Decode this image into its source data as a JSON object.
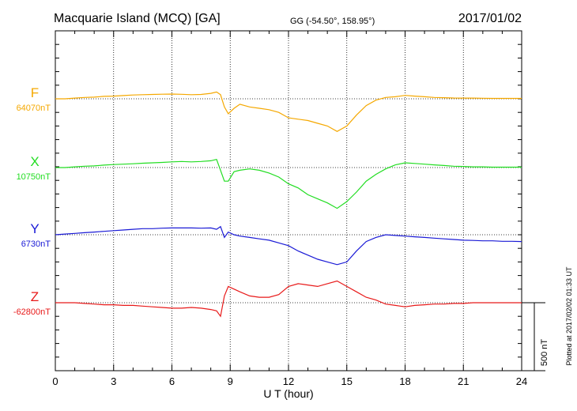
{
  "header": {
    "station": "Macquarie Island (MCQ)  [GA]",
    "coords": "GG (-54.50°, 158.95°)",
    "date": "2017/01/02"
  },
  "footer": {
    "plotted": "Plotted at 2017/02/02 01:33 UT",
    "scale_label": "500 nT"
  },
  "chart_data": {
    "type": "line",
    "xlabel": "U T (hour)",
    "xlim": [
      0,
      24
    ],
    "x_ticks": [
      0,
      3,
      6,
      9,
      12,
      15,
      18,
      21,
      24
    ],
    "x_tick_labels": [
      "0",
      "3",
      "6",
      "9",
      "12",
      "15",
      "18",
      "21",
      "24"
    ],
    "scale_bar_nT": 500,
    "grid": true,
    "x": [
      0,
      0.5,
      1,
      1.5,
      2,
      2.5,
      3,
      3.5,
      4,
      4.5,
      5,
      5.5,
      6,
      6.5,
      7,
      7.5,
      8,
      8.3,
      8.5,
      8.7,
      8.9,
      9.2,
      9.5,
      10,
      10.5,
      11,
      11.5,
      12,
      12.5,
      13,
      13.5,
      14,
      14.5,
      15,
      15.5,
      16,
      16.5,
      17,
      17.5,
      18,
      18.5,
      19,
      19.5,
      20,
      20.5,
      21,
      21.5,
      22,
      22.5,
      23,
      23.5,
      24
    ],
    "series": [
      {
        "name": "F",
        "baseline_label": "64070nT",
        "color": "#f5a800",
        "values": [
          0,
          0,
          5,
          10,
          12,
          18,
          20,
          24,
          28,
          30,
          32,
          34,
          35,
          33,
          30,
          32,
          40,
          50,
          30,
          -60,
          -110,
          -70,
          -40,
          -60,
          -70,
          -80,
          -100,
          -140,
          -150,
          -160,
          -180,
          -200,
          -240,
          -200,
          -120,
          -50,
          -10,
          10,
          15,
          25,
          20,
          15,
          10,
          8,
          6,
          5,
          5,
          4,
          3,
          3,
          3,
          3
        ]
      },
      {
        "name": "X",
        "baseline_label": "10750nT",
        "color": "#22dd22",
        "values": [
          0,
          0,
          5,
          10,
          12,
          18,
          22,
          25,
          28,
          32,
          35,
          38,
          42,
          45,
          42,
          45,
          50,
          60,
          -20,
          -100,
          -100,
          -30,
          -20,
          -10,
          -20,
          -40,
          -70,
          -120,
          -150,
          -200,
          -230,
          -260,
          -300,
          -250,
          -180,
          -100,
          -50,
          -10,
          20,
          35,
          30,
          25,
          20,
          15,
          10,
          8,
          5,
          5,
          3,
          3,
          3,
          3
        ]
      },
      {
        "name": "Y",
        "baseline_label": "6730nT",
        "color": "#1a1ad6",
        "values": [
          0,
          5,
          10,
          15,
          20,
          25,
          30,
          35,
          40,
          45,
          45,
          48,
          50,
          50,
          50,
          48,
          50,
          40,
          60,
          -20,
          20,
          0,
          -10,
          -20,
          -30,
          -40,
          -60,
          -80,
          -120,
          -150,
          -180,
          -200,
          -220,
          -200,
          -120,
          -50,
          -20,
          0,
          -5,
          -10,
          -15,
          -20,
          -25,
          -30,
          -35,
          -40,
          -42,
          -45,
          -45,
          -48,
          -48,
          -50
        ]
      },
      {
        "name": "Z",
        "baseline_label": "-62800nT",
        "color": "#e81a1a",
        "values": [
          0,
          0,
          0,
          -5,
          -10,
          -15,
          -15,
          -20,
          -20,
          -25,
          -30,
          -35,
          -40,
          -40,
          -35,
          -40,
          -50,
          -60,
          -100,
          50,
          120,
          100,
          80,
          50,
          40,
          40,
          60,
          120,
          140,
          130,
          120,
          140,
          160,
          120,
          80,
          40,
          20,
          -10,
          -20,
          -30,
          -20,
          -15,
          -10,
          -10,
          -5,
          -5,
          0,
          0,
          0,
          0,
          0,
          0
        ]
      }
    ]
  }
}
